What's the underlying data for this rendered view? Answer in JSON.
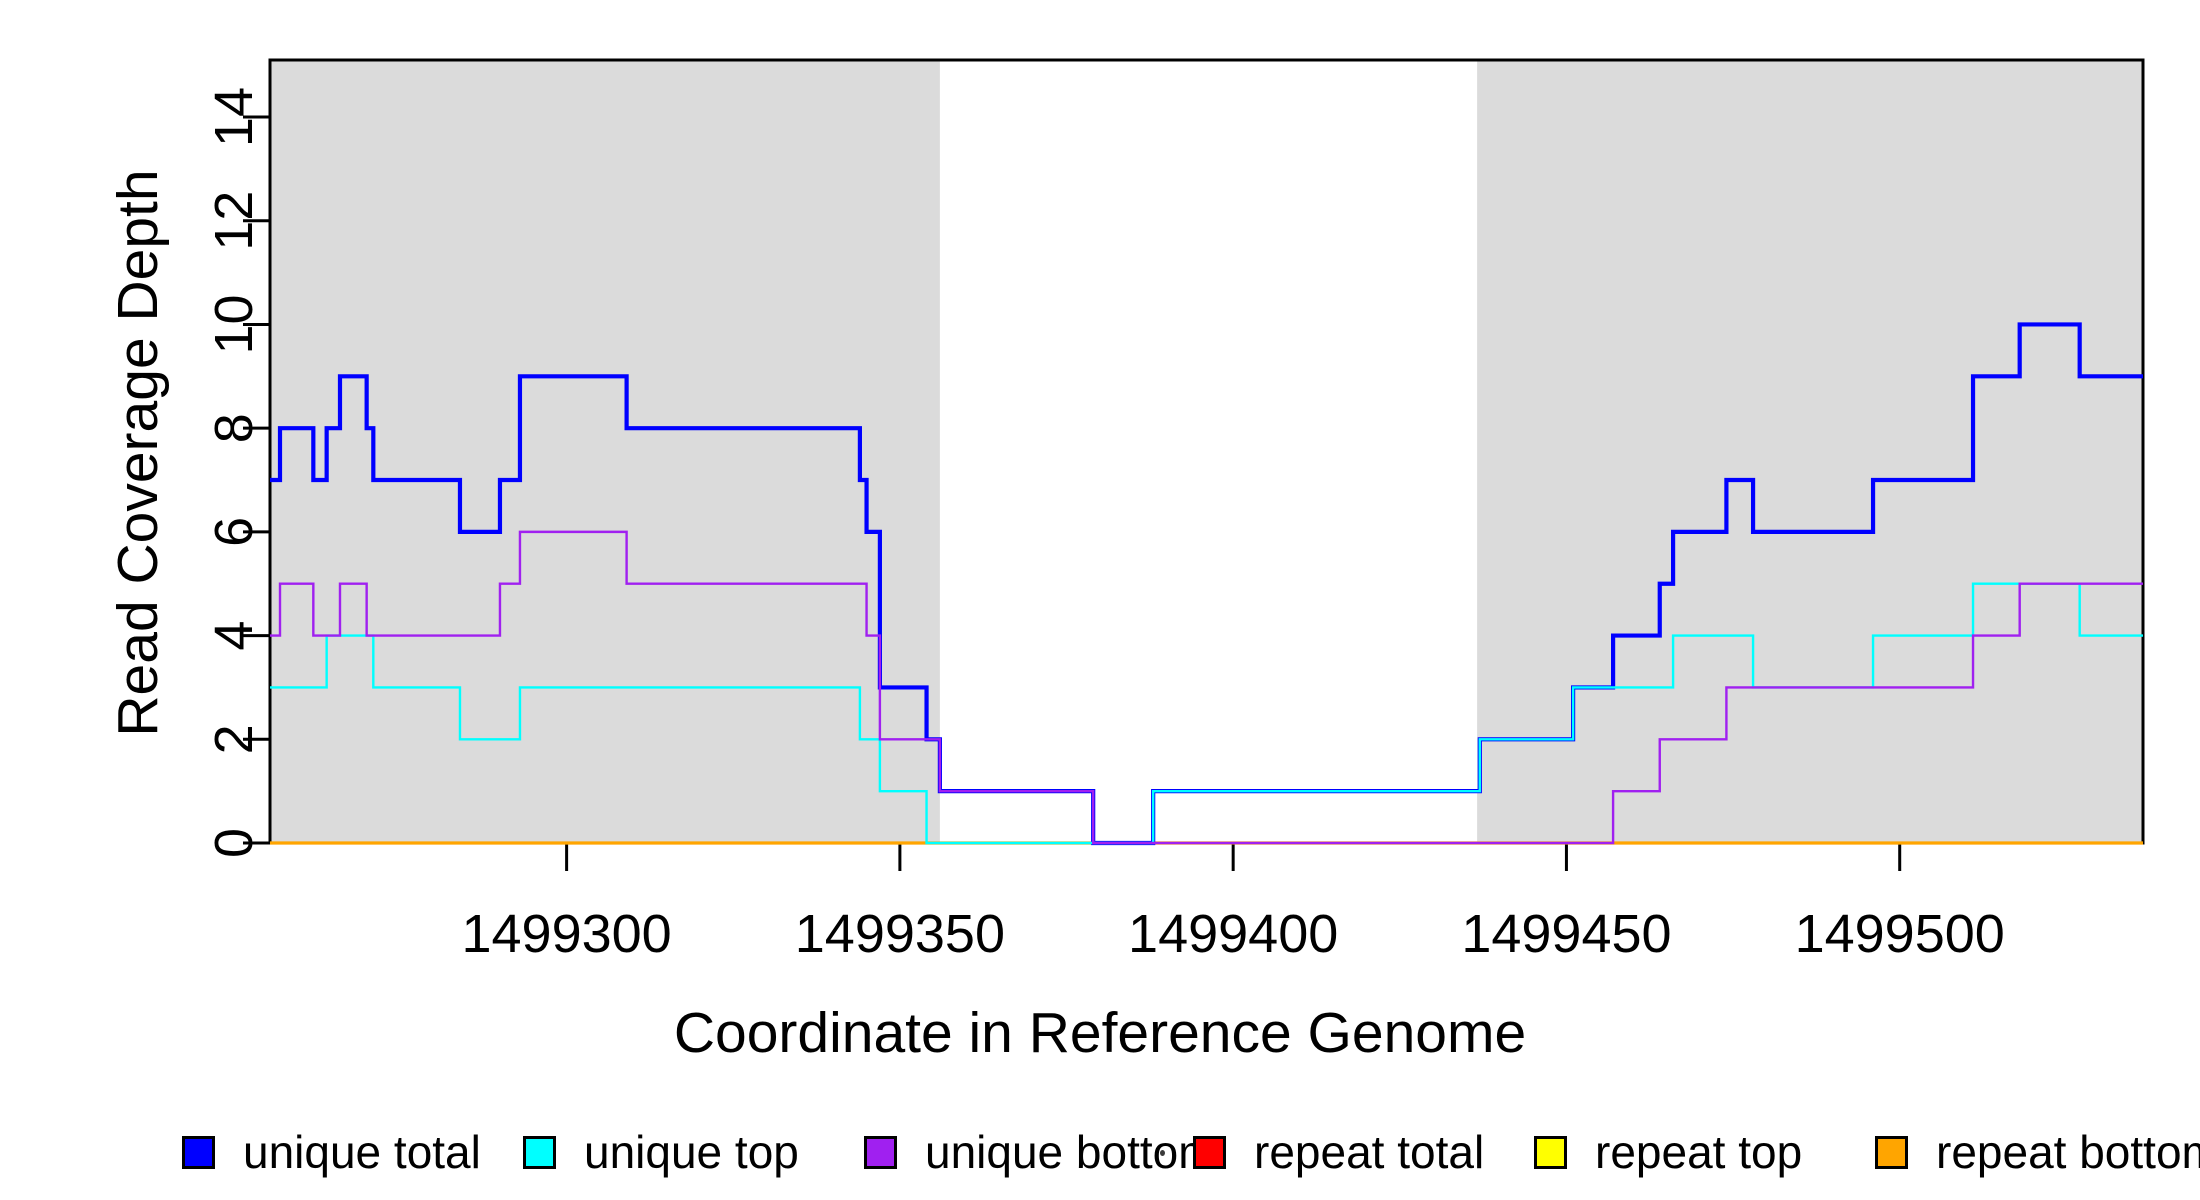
{
  "figure": {
    "background_color": "#ffffff",
    "shade_color": "#dbdbdb",
    "axis_color": "#000000"
  },
  "chart_data": {
    "type": "line",
    "subtype": "step-after",
    "title": "",
    "xlabel": "Coordinate in Reference Genome",
    "ylabel": "Read Coverage Depth",
    "x_domain": [
      1499255.5,
      1499536.5
    ],
    "y_domain": [
      0,
      15.1
    ],
    "grid": false,
    "legend_position": "bottom",
    "x_ticks": [
      {
        "value": 1499300,
        "label": "1499300"
      },
      {
        "value": 1499350,
        "label": "1499350"
      },
      {
        "value": 1499400,
        "label": "1499400"
      },
      {
        "value": 1499450,
        "label": "1499450"
      },
      {
        "value": 1499500,
        "label": "1499500"
      }
    ],
    "y_ticks": [
      {
        "value": 0,
        "label": "0"
      },
      {
        "value": 2,
        "label": "2"
      },
      {
        "value": 4,
        "label": "4"
      },
      {
        "value": 6,
        "label": "6"
      },
      {
        "value": 8,
        "label": "8"
      },
      {
        "value": 10,
        "label": "10"
      },
      {
        "value": 12,
        "label": "12"
      },
      {
        "value": 14,
        "label": "14"
      }
    ],
    "shaded_regions": [
      {
        "name": "repeat-masked-region-left",
        "x_start": 1499255.5,
        "x_end": 1499356,
        "color": "#dbdbdb"
      },
      {
        "name": "repeat-masked-region-right",
        "x_start": 1499436.6,
        "x_end": 1499536.5,
        "color": "#dbdbdb"
      }
    ],
    "series": [
      {
        "name": "unique total",
        "color": "#0000ff",
        "line_width": 4.2,
        "points": [
          [
            1499255.5,
            7
          ],
          [
            1499257,
            8
          ],
          [
            1499262,
            7
          ],
          [
            1499264,
            8
          ],
          [
            1499266,
            9
          ],
          [
            1499270,
            8
          ],
          [
            1499271,
            7
          ],
          [
            1499284,
            6
          ],
          [
            1499290,
            7
          ],
          [
            1499293,
            9
          ],
          [
            1499309,
            8
          ],
          [
            1499344,
            7
          ],
          [
            1499345,
            6
          ],
          [
            1499347,
            3
          ],
          [
            1499354,
            2
          ],
          [
            1499356,
            1
          ],
          [
            1499379,
            0
          ],
          [
            1499388,
            1
          ],
          [
            1499437,
            2
          ],
          [
            1499451,
            3
          ],
          [
            1499457,
            4
          ],
          [
            1499464,
            5
          ],
          [
            1499466,
            6
          ],
          [
            1499474,
            7
          ],
          [
            1499478,
            6
          ],
          [
            1499496,
            7
          ],
          [
            1499511,
            9
          ],
          [
            1499518,
            10
          ],
          [
            1499527,
            9
          ]
        ]
      },
      {
        "name": "unique top",
        "color": "#00ffff",
        "line_width": 2.4,
        "points": [
          [
            1499255.5,
            3
          ],
          [
            1499264,
            4
          ],
          [
            1499271,
            3
          ],
          [
            1499284,
            2
          ],
          [
            1499293,
            3
          ],
          [
            1499344,
            2
          ],
          [
            1499347,
            1
          ],
          [
            1499354,
            0
          ],
          [
            1499388,
            1
          ],
          [
            1499437,
            2
          ],
          [
            1499451,
            3
          ],
          [
            1499466,
            4
          ],
          [
            1499478,
            3
          ],
          [
            1499496,
            4
          ],
          [
            1499511,
            5
          ],
          [
            1499527,
            4
          ]
        ]
      },
      {
        "name": "unique bottom",
        "color": "#a020f0",
        "line_width": 2.4,
        "points": [
          [
            1499255.5,
            4
          ],
          [
            1499257,
            5
          ],
          [
            1499262,
            4
          ],
          [
            1499266,
            5
          ],
          [
            1499270,
            4
          ],
          [
            1499290,
            5
          ],
          [
            1499293,
            6
          ],
          [
            1499309,
            5
          ],
          [
            1499345,
            4
          ],
          [
            1499347,
            2
          ],
          [
            1499356,
            1
          ],
          [
            1499379,
            0
          ],
          [
            1499457,
            1
          ],
          [
            1499464,
            2
          ],
          [
            1499474,
            3
          ],
          [
            1499511,
            4
          ],
          [
            1499518,
            5
          ]
        ]
      },
      {
        "name": "repeat total",
        "color": "#ff0000",
        "line_width": 2.4,
        "points": [
          [
            1499255.5,
            0
          ]
        ]
      },
      {
        "name": "repeat top",
        "color": "#ffff00",
        "line_width": 2.4,
        "points": [
          [
            1499255.5,
            0
          ]
        ]
      },
      {
        "name": "repeat bottom",
        "color": "#ffa500",
        "line_width": 3.2,
        "points": [
          [
            1499255.5,
            0
          ]
        ]
      }
    ],
    "draw_order": [
      "repeat total",
      "repeat top",
      "repeat bottom",
      "unique total",
      "unique top",
      "unique bottom"
    ]
  },
  "legend": {
    "items": [
      {
        "label": "unique total",
        "color": "#0000ff"
      },
      {
        "label": "unique top",
        "color": "#00ffff"
      },
      {
        "label": "unique bottom",
        "color": "#a020f0"
      },
      {
        "label": "repeat total",
        "color": "#ff0000"
      },
      {
        "label": "repeat top",
        "color": "#ffff00"
      },
      {
        "label": "repeat bottom",
        "color": "#ffa500"
      }
    ]
  }
}
